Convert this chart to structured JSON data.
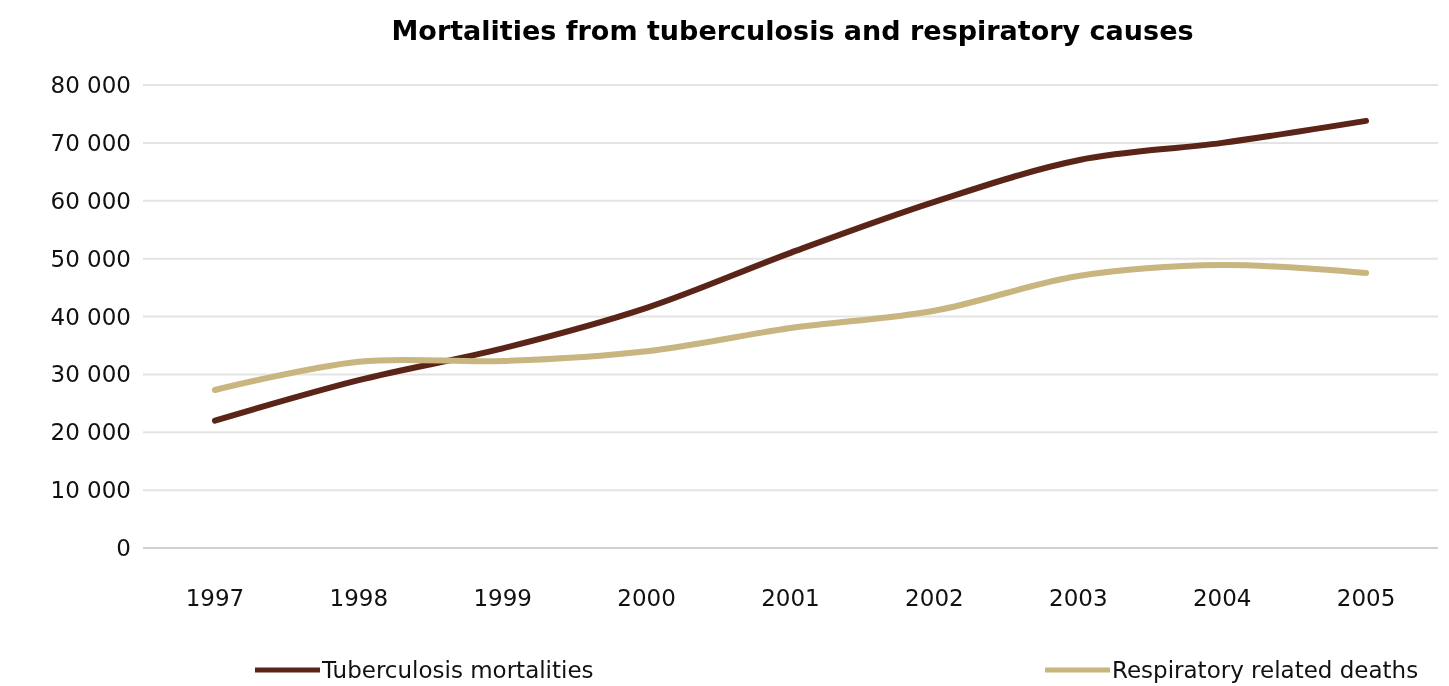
{
  "chart_data": {
    "type": "line",
    "title": "Mortalities from tuberculosis and respiratory causes",
    "categories": [
      "1997",
      "1998",
      "1999",
      "2000",
      "2001",
      "2002",
      "2003",
      "2004",
      "2005"
    ],
    "series": [
      {
        "name": "Tuberculosis mortalities",
        "color": "#5b2418",
        "values": [
          22000,
          29000,
          34500,
          41500,
          51000,
          59800,
          67000,
          70000,
          73800
        ]
      },
      {
        "name": "Respiratory related deaths",
        "color": "#c8b57f",
        "values": [
          27300,
          32200,
          32300,
          34000,
          38000,
          41000,
          47000,
          48900,
          47500
        ]
      }
    ],
    "ylim": [
      0,
      80000
    ],
    "yticks": [
      {
        "value": 0,
        "label": "0"
      },
      {
        "value": 10000,
        "label": "10 000"
      },
      {
        "value": 20000,
        "label": "20 000"
      },
      {
        "value": 30000,
        "label": "30 000"
      },
      {
        "value": 40000,
        "label": "40 000"
      },
      {
        "value": 50000,
        "label": "50 000"
      },
      {
        "value": 60000,
        "label": "60 000"
      },
      {
        "value": 70000,
        "label": "70 000"
      },
      {
        "value": 80000,
        "label": "80 000"
      }
    ],
    "grid": "y",
    "legend": "bottom",
    "marker": "none",
    "line_style": "solid"
  }
}
